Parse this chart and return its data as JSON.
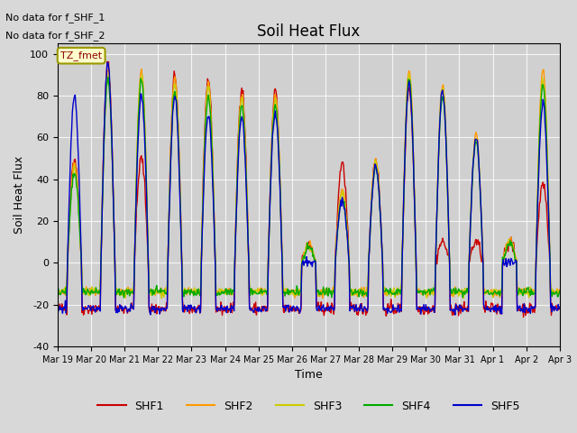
{
  "title": "Soil Heat Flux",
  "ylabel": "Soil Heat Flux",
  "xlabel": "Time",
  "ylim": [
    -40,
    105
  ],
  "xlim": [
    0,
    360
  ],
  "colors": {
    "SHF1": "#cc0000",
    "SHF2": "#ff9900",
    "SHF3": "#cccc00",
    "SHF4": "#00aa00",
    "SHF5": "#0000cc"
  },
  "annotations": [
    {
      "text": "No data for f_SHF_1"
    },
    {
      "text": "No data for f_SHF_2"
    }
  ],
  "legend_box_text": "TZ_fmet",
  "xtick_positions": [
    0,
    24,
    48,
    72,
    96,
    120,
    144,
    168,
    192,
    216,
    240,
    264,
    288,
    312,
    336,
    360
  ],
  "xtick_labels": [
    "Mar 19",
    "Mar 20",
    "Mar 21",
    "Mar 22",
    "Mar 23",
    "Mar 24",
    "Mar 25",
    "Mar 26",
    "Mar 27",
    "Mar 28",
    "Mar 29",
    "Mar 30",
    "Mar 31",
    "Apr 1",
    "Apr 2",
    "Apr 3"
  ],
  "ytick_values": [
    -40,
    -20,
    0,
    20,
    40,
    60,
    80,
    100
  ],
  "linewidth": 1.0,
  "bg_color": "#d8d8d8",
  "plot_bg_color": "#d0d0d0"
}
